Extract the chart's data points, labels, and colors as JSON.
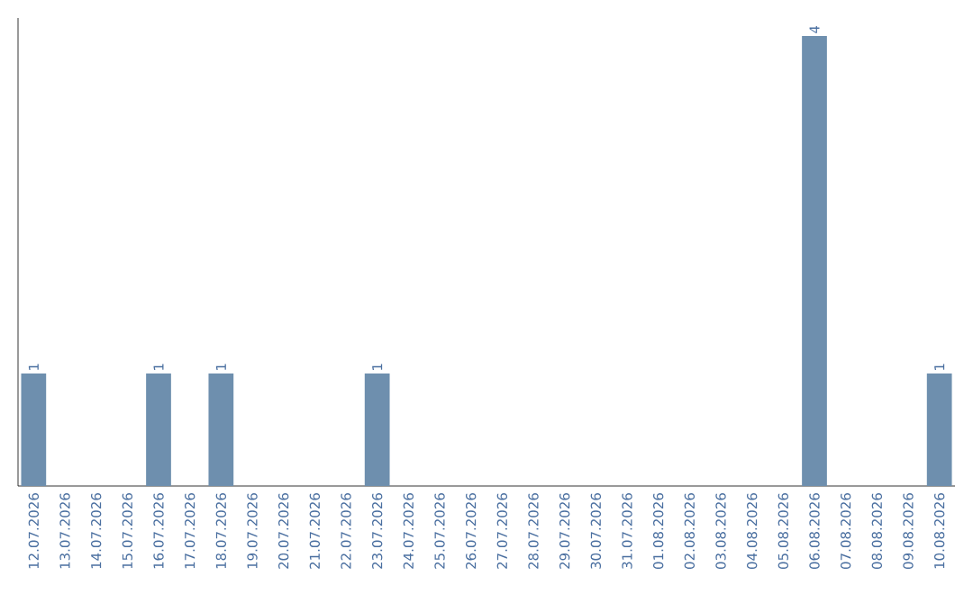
{
  "chart_data": {
    "type": "bar",
    "color": "#6e8fae",
    "categories": [
      "12.07.2026",
      "13.07.2026",
      "14.07.2026",
      "15.07.2026",
      "16.07.2026",
      "17.07.2026",
      "18.07.2026",
      "19.07.2026",
      "20.07.2026",
      "21.07.2026",
      "22.07.2026",
      "23.07.2026",
      "24.07.2026",
      "25.07.2026",
      "26.07.2026",
      "27.07.2026",
      "28.07.2026",
      "29.07.2026",
      "30.07.2026",
      "31.07.2026",
      "01.08.2026",
      "02.08.2026",
      "03.08.2026",
      "04.08.2026",
      "05.08.2026",
      "06.08.2026",
      "07.08.2026",
      "08.08.2026",
      "09.08.2026",
      "10.08.2026"
    ],
    "values": [
      1,
      0,
      0,
      0,
      1,
      0,
      1,
      0,
      0,
      0,
      0,
      1,
      0,
      0,
      0,
      0,
      0,
      0,
      0,
      0,
      0,
      0,
      0,
      0,
      0,
      4,
      0,
      0,
      0,
      1
    ],
    "value_labels": [
      "1",
      null,
      null,
      null,
      "1",
      null,
      "1",
      null,
      null,
      null,
      null,
      "1",
      null,
      null,
      null,
      null,
      null,
      null,
      null,
      null,
      null,
      null,
      null,
      null,
      null,
      "4",
      null,
      null,
      null,
      "1"
    ],
    "ylim": [
      0,
      4.16
    ],
    "tick_labels": "x"
  }
}
